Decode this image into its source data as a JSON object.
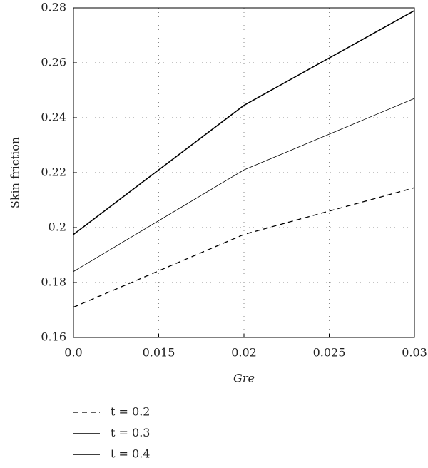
{
  "chart_data": {
    "type": "line",
    "x_label": "Gre",
    "y_label": "Skin friction",
    "x": [
      0.01,
      0.02,
      0.03
    ],
    "series": [
      {
        "name": "t = 0.2",
        "color": "#000000",
        "line_style": "dashed",
        "line_width": 1.3,
        "values": [
          0.171,
          0.1975,
          0.2145
        ]
      },
      {
        "name": "t = 0.3",
        "color": "#000000",
        "line_style": "solid",
        "line_width": 0.8,
        "values": [
          0.184,
          0.221,
          0.247
        ]
      },
      {
        "name": "t = 0.4",
        "color": "#000000",
        "line_style": "solid",
        "line_width": 1.6,
        "values": [
          0.1975,
          0.2445,
          0.279
        ]
      }
    ],
    "xlim": [
      0.01,
      0.03
    ],
    "xticks": [
      {
        "value": 0.01,
        "label": "0.0"
      },
      0.015,
      0.02,
      0.025,
      0.03
    ],
    "ylim": [
      0.16,
      0.28
    ],
    "yticks": [
      0.16,
      0.18,
      {
        "value": 0.2,
        "label": "0.2"
      },
      0.22,
      0.24,
      0.26,
      0.28
    ],
    "grid": true
  }
}
